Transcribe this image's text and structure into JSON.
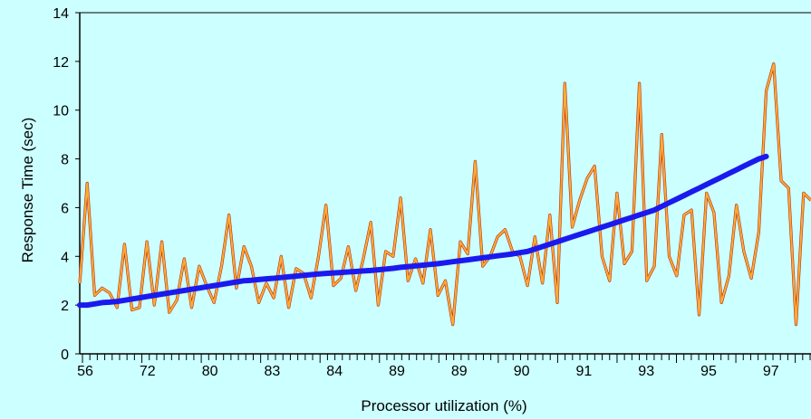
{
  "chart_data": {
    "type": "line",
    "title": "",
    "xlabel": "Processor utilization (%)",
    "ylabel": "Response Time (sec)",
    "ylim": [
      0,
      14
    ],
    "yticks": [
      0,
      2,
      4,
      6,
      8,
      10,
      12,
      14
    ],
    "x_tick_labels": [
      "56",
      "72",
      "80",
      "83",
      "84",
      "89",
      "89",
      "90",
      "91",
      "93",
      "95",
      "97"
    ],
    "grid": false,
    "legend": "none",
    "colors": {
      "background": "#ccffff",
      "measured": "#ffaa33",
      "measured_outline": "#b0301a",
      "trend": "#1a1aee"
    },
    "series": [
      {
        "role": "measured",
        "values": [
          2.9,
          7.0,
          2.4,
          2.7,
          2.5,
          1.9,
          4.5,
          1.8,
          1.9,
          4.6,
          2.0,
          4.6,
          1.7,
          2.2,
          3.9,
          1.9,
          3.6,
          2.8,
          2.1,
          3.6,
          5.7,
          2.7,
          4.4,
          3.6,
          2.1,
          2.9,
          2.3,
          4.0,
          1.9,
          3.5,
          3.3,
          2.3,
          4.0,
          6.1,
          2.8,
          3.1,
          4.4,
          2.6,
          3.9,
          5.4,
          2.0,
          4.2,
          4.0,
          6.4,
          3.0,
          3.9,
          2.9,
          5.1,
          2.4,
          3.0,
          1.2,
          4.6,
          4.1,
          7.9,
          3.6,
          4.0,
          4.8,
          5.1,
          4.2,
          4.0,
          2.8,
          4.8,
          2.9,
          5.7,
          2.1,
          11.1,
          5.2,
          6.3,
          7.2,
          7.7,
          4.0,
          3.0,
          6.6,
          3.7,
          4.2,
          11.1,
          3.0,
          3.6,
          9.0,
          4.0,
          3.2,
          5.7,
          5.9,
          1.6,
          6.6,
          5.8,
          2.1,
          3.2,
          6.1,
          4.2,
          3.1,
          5.0,
          10.8,
          11.9,
          7.1,
          6.8,
          1.2,
          6.6,
          6.3
        ]
      },
      {
        "role": "trend",
        "values": [
          2.0,
          2.0,
          2.05,
          2.1,
          2.12,
          2.15,
          2.2,
          2.25,
          2.3,
          2.35,
          2.4,
          2.45,
          2.5,
          2.55,
          2.6,
          2.65,
          2.7,
          2.75,
          2.8,
          2.85,
          2.9,
          2.95,
          3.0,
          3.02,
          3.05,
          3.08,
          3.1,
          3.13,
          3.16,
          3.19,
          3.22,
          3.25,
          3.28,
          3.3,
          3.32,
          3.34,
          3.36,
          3.38,
          3.4,
          3.42,
          3.45,
          3.48,
          3.51,
          3.55,
          3.58,
          3.61,
          3.64,
          3.67,
          3.7,
          3.74,
          3.78,
          3.82,
          3.86,
          3.9,
          3.94,
          3.98,
          4.02,
          4.06,
          4.1,
          4.15,
          4.2,
          4.3,
          4.4,
          4.5,
          4.6,
          4.7,
          4.8,
          4.9,
          5.0,
          5.1,
          5.2,
          5.3,
          5.4,
          5.5,
          5.6,
          5.7,
          5.8,
          5.9,
          6.05,
          6.2,
          6.35,
          6.5,
          6.65,
          6.8,
          6.95,
          7.1,
          7.25,
          7.4,
          7.55,
          7.7,
          7.85,
          8.0,
          8.1
        ]
      }
    ]
  }
}
